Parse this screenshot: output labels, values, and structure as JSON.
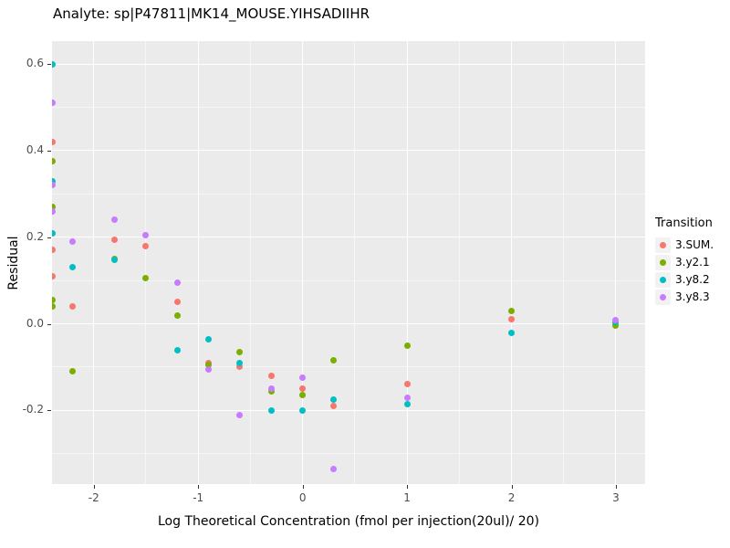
{
  "chart_data": {
    "type": "scatter",
    "title": "Analyte: sp|P47811|MK14_MOUSE.YIHSADIIHR",
    "xlabel": "Log Theoretical Concentration (fmol per injection(20ul)/ 20)",
    "ylabel": "Residual",
    "xlim": [
      -2.4,
      3.28
    ],
    "ylim": [
      -0.37,
      0.653
    ],
    "x_tick_values": [
      -2,
      -1,
      0,
      1,
      2,
      3
    ],
    "x_tick_labels": [
      "-2",
      "-1",
      "0",
      "1",
      "2",
      "3"
    ],
    "y_tick_values": [
      -0.2,
      0.0,
      0.2,
      0.4,
      0.6
    ],
    "y_tick_labels": [
      "-0.2",
      "0.0",
      "0.2",
      "0.4",
      "0.6"
    ],
    "x_minor": [
      -1.5,
      -0.5,
      0.5,
      1.5,
      2.5
    ],
    "y_minor": [
      -0.3,
      -0.1,
      0.1,
      0.3,
      0.5
    ],
    "grid": true,
    "panel_background": "#EBEBEB",
    "legend_position": "right",
    "legend_title": "Transition",
    "series": [
      {
        "name": "3.SUM.",
        "color": "#F8766D",
        "points": [
          [
            -2.4,
            0.42
          ],
          [
            -2.4,
            0.17
          ],
          [
            -2.4,
            0.11
          ],
          [
            -2.2,
            0.04
          ],
          [
            -1.8,
            0.195
          ],
          [
            -1.5,
            0.18
          ],
          [
            -1.2,
            0.05
          ],
          [
            -0.9,
            -0.09
          ],
          [
            -0.6,
            -0.1
          ],
          [
            -0.3,
            -0.12
          ],
          [
            0,
            -0.15
          ],
          [
            0.3,
            -0.19
          ],
          [
            1,
            -0.14
          ],
          [
            2,
            0.01
          ],
          [
            3,
            0.0
          ]
        ]
      },
      {
        "name": "3.y2.1",
        "color": "#7CAE00",
        "points": [
          [
            -2.4,
            0.375
          ],
          [
            -2.4,
            0.27
          ],
          [
            -2.4,
            0.055
          ],
          [
            -2.4,
            0.04
          ],
          [
            -2.2,
            -0.11
          ],
          [
            -1.8,
            0.15
          ],
          [
            -1.5,
            0.105
          ],
          [
            -1.2,
            0.02
          ],
          [
            -0.9,
            -0.095
          ],
          [
            -0.6,
            -0.065
          ],
          [
            -0.3,
            -0.155
          ],
          [
            0,
            -0.165
          ],
          [
            0.3,
            -0.085
          ],
          [
            1,
            -0.05
          ],
          [
            2,
            0.03
          ],
          [
            3,
            -0.005
          ]
        ]
      },
      {
        "name": "3.y8.2",
        "color": "#00BFC4",
        "points": [
          [
            -2.4,
            0.6
          ],
          [
            -2.4,
            0.33
          ],
          [
            -2.4,
            0.21
          ],
          [
            -2.2,
            0.13
          ],
          [
            -1.8,
            0.147
          ],
          [
            -1.2,
            -0.06
          ],
          [
            -0.9,
            -0.035
          ],
          [
            -0.6,
            -0.09
          ],
          [
            -0.3,
            -0.2
          ],
          [
            0,
            -0.2
          ],
          [
            0.3,
            -0.175
          ],
          [
            1,
            -0.185
          ],
          [
            2,
            -0.02
          ],
          [
            3,
            0.005
          ]
        ]
      },
      {
        "name": "3.y8.3",
        "color": "#C77CFF",
        "points": [
          [
            -2.4,
            0.51
          ],
          [
            -2.4,
            0.32
          ],
          [
            -2.4,
            0.26
          ],
          [
            -2.2,
            0.19
          ],
          [
            -1.8,
            0.24
          ],
          [
            -1.5,
            0.205
          ],
          [
            -1.2,
            0.095
          ],
          [
            -0.9,
            -0.105
          ],
          [
            -0.6,
            -0.21
          ],
          [
            -0.3,
            -0.15
          ],
          [
            0,
            -0.125
          ],
          [
            0.3,
            -0.335
          ],
          [
            1,
            -0.17
          ],
          [
            3,
            0.008
          ]
        ]
      }
    ]
  }
}
